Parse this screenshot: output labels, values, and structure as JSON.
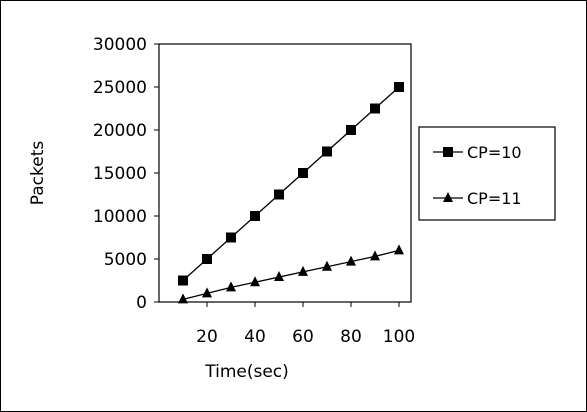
{
  "chart_data": {
    "type": "line",
    "title": "",
    "xlabel": "Time(sec)",
    "ylabel": "Packets",
    "xlim": [
      0,
      105
    ],
    "ylim": [
      0,
      30000
    ],
    "x_ticks": [
      20,
      40,
      60,
      80,
      100
    ],
    "y_ticks": [
      0,
      5000,
      10000,
      15000,
      20000,
      25000,
      30000
    ],
    "grid": false,
    "legend_position": "right",
    "series": [
      {
        "name": "CP=10",
        "marker": "square",
        "color": "#000000",
        "x": [
          10,
          20,
          30,
          40,
          50,
          60,
          70,
          80,
          90,
          100
        ],
        "y": [
          2500,
          5000,
          7500,
          10000,
          12500,
          15000,
          17500,
          20000,
          22500,
          25000
        ]
      },
      {
        "name": "CP=11",
        "marker": "triangle",
        "color": "#000000",
        "x": [
          10,
          20,
          30,
          40,
          50,
          60,
          70,
          80,
          90,
          100
        ],
        "y": [
          300,
          1000,
          1700,
          2300,
          2900,
          3500,
          4100,
          4700,
          5300,
          6000
        ]
      }
    ]
  }
}
